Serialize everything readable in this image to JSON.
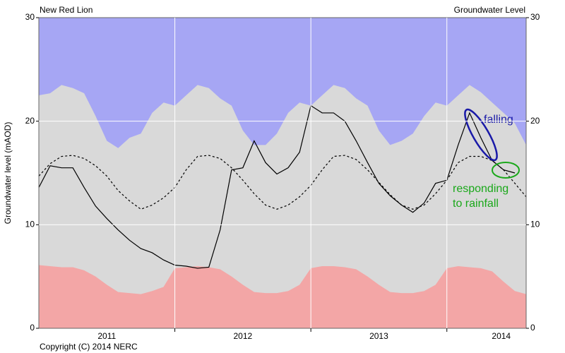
{
  "chart_data": {
    "type": "line",
    "title": "New Red Lion",
    "subtitle": "Groundwater Level",
    "footer": "Copyright (C) 2014 NERC",
    "y_label": "Groundwater level (mAOD)",
    "background": "#a6a6f4",
    "xlim": [
      2011,
      2014.583
    ],
    "xticks": [
      {
        "value": 2011.5,
        "label": "2011"
      },
      {
        "value": 2012.5,
        "label": "2012"
      },
      {
        "value": 2013.5,
        "label": "2013"
      },
      {
        "value": 2014.4,
        "label": "2014"
      }
    ],
    "xgrid": [
      2012,
      2013,
      2014
    ],
    "ylim": [
      0,
      30
    ],
    "yticks": [
      0,
      10,
      20,
      30
    ],
    "y2lim": [
      0,
      30
    ],
    "y2ticks": [
      0,
      10,
      20,
      30
    ],
    "grid": true,
    "x": [
      2011.0,
      2011.083,
      2011.167,
      2011.25,
      2011.333,
      2011.417,
      2011.5,
      2011.583,
      2011.667,
      2011.75,
      2011.833,
      2011.917,
      2012.0,
      2012.083,
      2012.167,
      2012.25,
      2012.333,
      2012.417,
      2012.5,
      2012.583,
      2012.667,
      2012.75,
      2012.833,
      2012.917,
      2013.0,
      2013.083,
      2013.167,
      2013.25,
      2013.333,
      2013.417,
      2013.5,
      2013.583,
      2013.667,
      2013.75,
      2013.833,
      2013.917,
      2014.0,
      2014.083,
      2014.167,
      2014.25,
      2014.333,
      2014.417,
      2014.5,
      2014.583
    ],
    "series": [
      {
        "style": "area",
        "color": "#d9d9d9",
        "values": [
          22.5,
          22.7,
          23.5,
          23.2,
          22.7,
          20.5,
          18.1,
          17.4,
          18.4,
          18.8,
          20.8,
          21.8,
          21.5,
          22.5,
          23.5,
          23.2,
          22.2,
          21.5,
          19.1,
          17.7,
          17.7,
          18.8,
          20.8,
          21.8,
          21.5,
          22.5,
          23.5,
          23.2,
          22.2,
          21.5,
          19.1,
          17.7,
          18.1,
          18.8,
          20.5,
          21.8,
          21.5,
          22.5,
          23.5,
          22.8,
          21.8,
          20.8,
          19.8,
          17.7
        ]
      },
      {
        "style": "area",
        "color": "#f3a6a6",
        "values": [
          6.1,
          6.0,
          5.9,
          5.9,
          5.6,
          5.0,
          4.2,
          3.5,
          3.4,
          3.3,
          3.6,
          4.0,
          5.8,
          5.9,
          6.0,
          5.9,
          5.7,
          5.0,
          4.2,
          3.5,
          3.4,
          3.4,
          3.6,
          4.2,
          5.8,
          6.0,
          6.0,
          5.9,
          5.7,
          5.0,
          4.2,
          3.5,
          3.4,
          3.4,
          3.6,
          4.2,
          5.8,
          6.0,
          5.9,
          5.8,
          5.5,
          4.5,
          3.6,
          3.3
        ]
      },
      {
        "style": "dashed",
        "color": "#000000",
        "values": [
          14.7,
          15.9,
          16.6,
          16.7,
          16.4,
          15.7,
          14.7,
          13.3,
          12.3,
          11.5,
          11.9,
          12.6,
          13.6,
          15.3,
          16.6,
          16.7,
          16.4,
          15.5,
          14.3,
          13.0,
          11.9,
          11.5,
          11.9,
          12.7,
          13.8,
          15.3,
          16.6,
          16.7,
          16.3,
          15.3,
          14.1,
          12.9,
          11.9,
          11.5,
          11.9,
          13.0,
          14.3,
          16.0,
          16.6,
          16.6,
          16.2,
          15.3,
          14.0,
          12.7
        ]
      },
      {
        "style": "solid",
        "color": "#000000",
        "values": [
          13.6,
          15.7,
          15.5,
          15.5,
          13.6,
          11.8,
          10.6,
          9.5,
          8.5,
          7.7,
          7.3,
          6.6,
          6.1,
          6.0,
          5.8,
          5.9,
          9.5,
          15.3,
          15.5,
          18.1,
          16.0,
          14.9,
          15.5,
          17.0,
          21.5,
          20.8,
          20.8,
          20.0,
          18.1,
          16.0,
          14.0,
          12.8,
          11.9,
          11.2,
          12.1,
          14.0,
          14.3,
          17.7,
          20.8,
          18.4,
          16.2,
          15.3,
          15.0,
          null
        ]
      }
    ],
    "annotations": [
      {
        "text": "falling",
        "color": "#1a1aa8"
      },
      {
        "text": [
          "responding",
          "to rainfall"
        ],
        "color": "#1aa81a"
      }
    ]
  }
}
